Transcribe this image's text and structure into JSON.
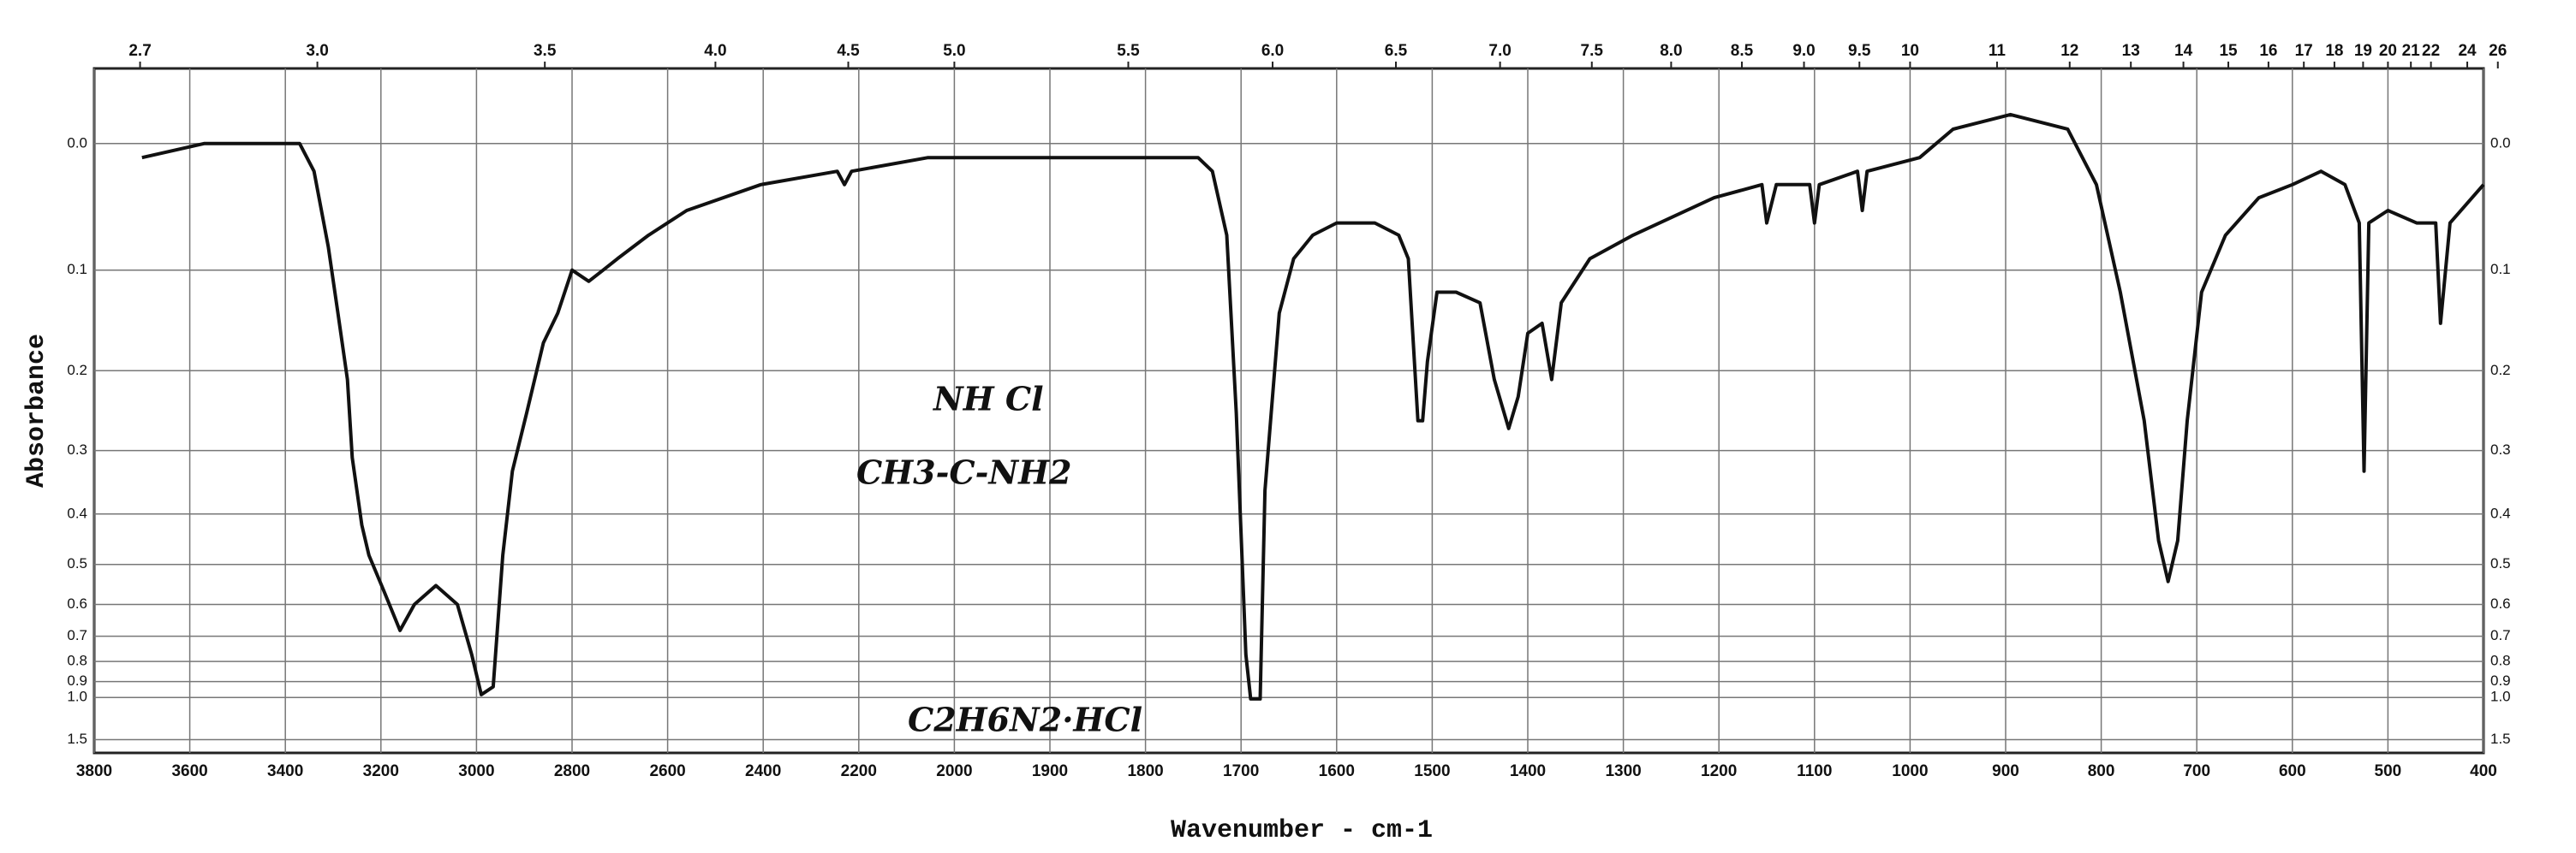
{
  "chart_data": {
    "type": "line",
    "xlabel": "Wavenumber - cm-1",
    "ylabel": "Absorbance",
    "annotations": [
      "NH Cl",
      "CH3-C-NH2",
      "C2H6N2·HCl"
    ],
    "color": "#111111",
    "grid": true,
    "yscale": "transmittance",
    "xlim": [
      3800,
      400
    ],
    "xticks": [
      3800,
      3600,
      3400,
      3200,
      3000,
      2800,
      2600,
      2400,
      2200,
      2000,
      1900,
      1800,
      1700,
      1600,
      1500,
      1400,
      1300,
      1200,
      1100,
      1000,
      900,
      800,
      700,
      600,
      500,
      400
    ],
    "x2ticks": [
      {
        "value": 3704,
        "label": "2.7"
      },
      {
        "value": 3333,
        "label": "3.0"
      },
      {
        "value": 2857,
        "label": "3.5"
      },
      {
        "value": 2500,
        "label": "4.0"
      },
      {
        "value": 2222,
        "label": "4.5"
      },
      {
        "value": 2000,
        "label": "5.0"
      },
      {
        "value": 1818,
        "label": "5.5"
      },
      {
        "value": 1667,
        "label": "6.0"
      },
      {
        "value": 1538,
        "label": "6.5"
      },
      {
        "value": 1429,
        "label": "7.0"
      },
      {
        "value": 1333,
        "label": "7.5"
      },
      {
        "value": 1250,
        "label": "8.0"
      },
      {
        "value": 1176,
        "label": "8.5"
      },
      {
        "value": 1111,
        "label": "9.0"
      },
      {
        "value": 1053,
        "label": "9.5"
      },
      {
        "value": 1000,
        "label": "10"
      },
      {
        "value": 909,
        "label": "11"
      },
      {
        "value": 833,
        "label": "12"
      },
      {
        "value": 769,
        "label": "13"
      },
      {
        "value": 714,
        "label": "14"
      },
      {
        "value": 667,
        "label": "15"
      },
      {
        "value": 625,
        "label": "16"
      },
      {
        "value": 588,
        "label": "17"
      },
      {
        "value": 556,
        "label": "18"
      },
      {
        "value": 526,
        "label": "19"
      },
      {
        "value": 500,
        "label": "20"
      },
      {
        "value": 476,
        "label": "21"
      },
      {
        "value": 455,
        "label": "22"
      },
      {
        "value": 417,
        "label": "24"
      },
      {
        "value": 385,
        "label": "26"
      }
    ],
    "ylim": [
      -0.05,
      2
    ],
    "yticks": [
      {
        "value": 0,
        "label": "0.0"
      },
      0.1,
      0.2,
      0.3,
      0.4,
      0.5,
      0.6,
      0.7,
      0.8,
      0.9,
      {
        "value": 1,
        "label": "1.0"
      },
      1.5
    ],
    "x": [
      3700,
      3570,
      3450,
      3370,
      3340,
      3310,
      3290,
      3270,
      3260,
      3240,
      3225,
      3195,
      3160,
      3130,
      3085,
      3040,
      3010,
      2990,
      2965,
      2945,
      2925,
      2895,
      2860,
      2830,
      2800,
      2765,
      2735,
      2705,
      2640,
      2560,
      2405,
      2245,
      2230,
      2215,
      2055,
      1965,
      1880,
      1795,
      1745,
      1730,
      1715,
      1705,
      1695,
      1690,
      1680,
      1675,
      1660,
      1645,
      1625,
      1600,
      1560,
      1535,
      1525,
      1515,
      1510,
      1505,
      1495,
      1475,
      1450,
      1435,
      1420,
      1410,
      1400,
      1385,
      1375,
      1365,
      1335,
      1290,
      1205,
      1155,
      1150,
      1140,
      1105,
      1100,
      1095,
      1055,
      1050,
      1045,
      990,
      955,
      895,
      835,
      805,
      780,
      755,
      740,
      730,
      720,
      710,
      695,
      670,
      635,
      600,
      570,
      545,
      530,
      525,
      520,
      500,
      470,
      450,
      445,
      435,
      400
    ],
    "values": [
      0.01,
      0.0,
      0.0,
      0.0,
      0.02,
      0.08,
      0.14,
      0.21,
      0.31,
      0.42,
      0.48,
      0.56,
      0.68,
      0.6,
      0.55,
      0.6,
      0.77,
      0.98,
      0.93,
      0.48,
      0.33,
      0.25,
      0.17,
      0.14,
      0.1,
      0.11,
      0.1,
      0.09,
      0.07,
      0.05,
      0.03,
      0.02,
      0.03,
      0.02,
      0.01,
      0.01,
      0.01,
      0.01,
      0.01,
      0.02,
      0.07,
      0.25,
      0.77,
      1.01,
      1.01,
      0.36,
      0.14,
      0.09,
      0.07,
      0.06,
      0.06,
      0.07,
      0.09,
      0.26,
      0.26,
      0.19,
      0.12,
      0.12,
      0.13,
      0.21,
      0.27,
      0.23,
      0.16,
      0.15,
      0.21,
      0.13,
      0.09,
      0.07,
      0.04,
      0.03,
      0.06,
      0.03,
      0.03,
      0.06,
      0.03,
      0.02,
      0.05,
      0.02,
      0.01,
      -0.01,
      -0.02,
      -0.01,
      0.03,
      0.12,
      0.26,
      0.45,
      0.54,
      0.45,
      0.26,
      0.12,
      0.07,
      0.04,
      0.03,
      0.02,
      0.03,
      0.06,
      0.33,
      0.06,
      0.05,
      0.06,
      0.06,
      0.15,
      0.06,
      0.03
    ]
  }
}
